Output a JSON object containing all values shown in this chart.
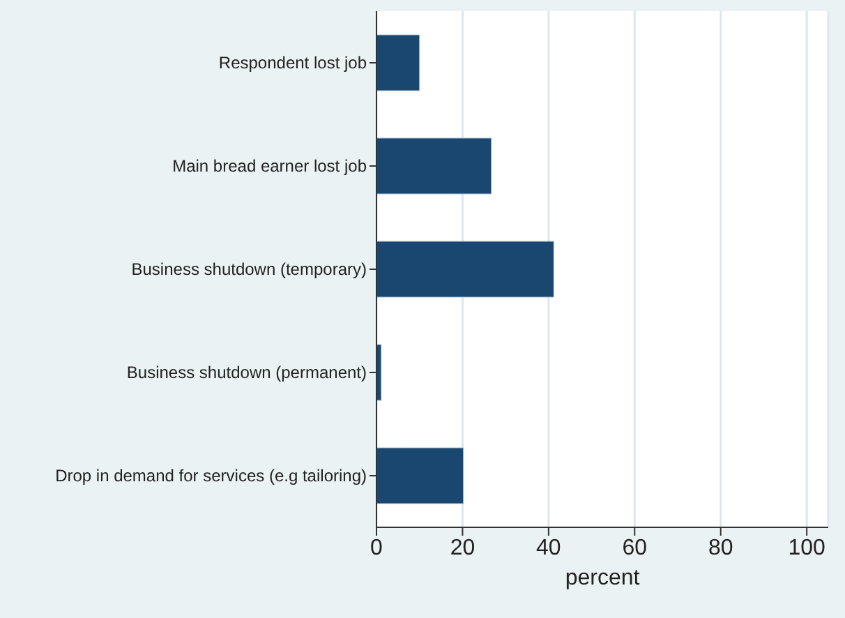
{
  "chart_data": {
    "type": "bar",
    "orientation": "horizontal",
    "xlabel": "percent",
    "categories": [
      "Respondent lost job",
      "Main bread earner lost job",
      "Business shutdown (temporary)",
      "Business shutdown (permanent)",
      "Drop in demand for services (e.g tailoring)"
    ],
    "values": [
      10,
      26.7,
      41.2,
      1.1,
      20.2
    ],
    "color": "#1a476f",
    "xlim": [
      0,
      105
    ],
    "xticks": [
      0,
      20,
      40,
      60,
      80,
      100
    ],
    "grid": "x"
  }
}
